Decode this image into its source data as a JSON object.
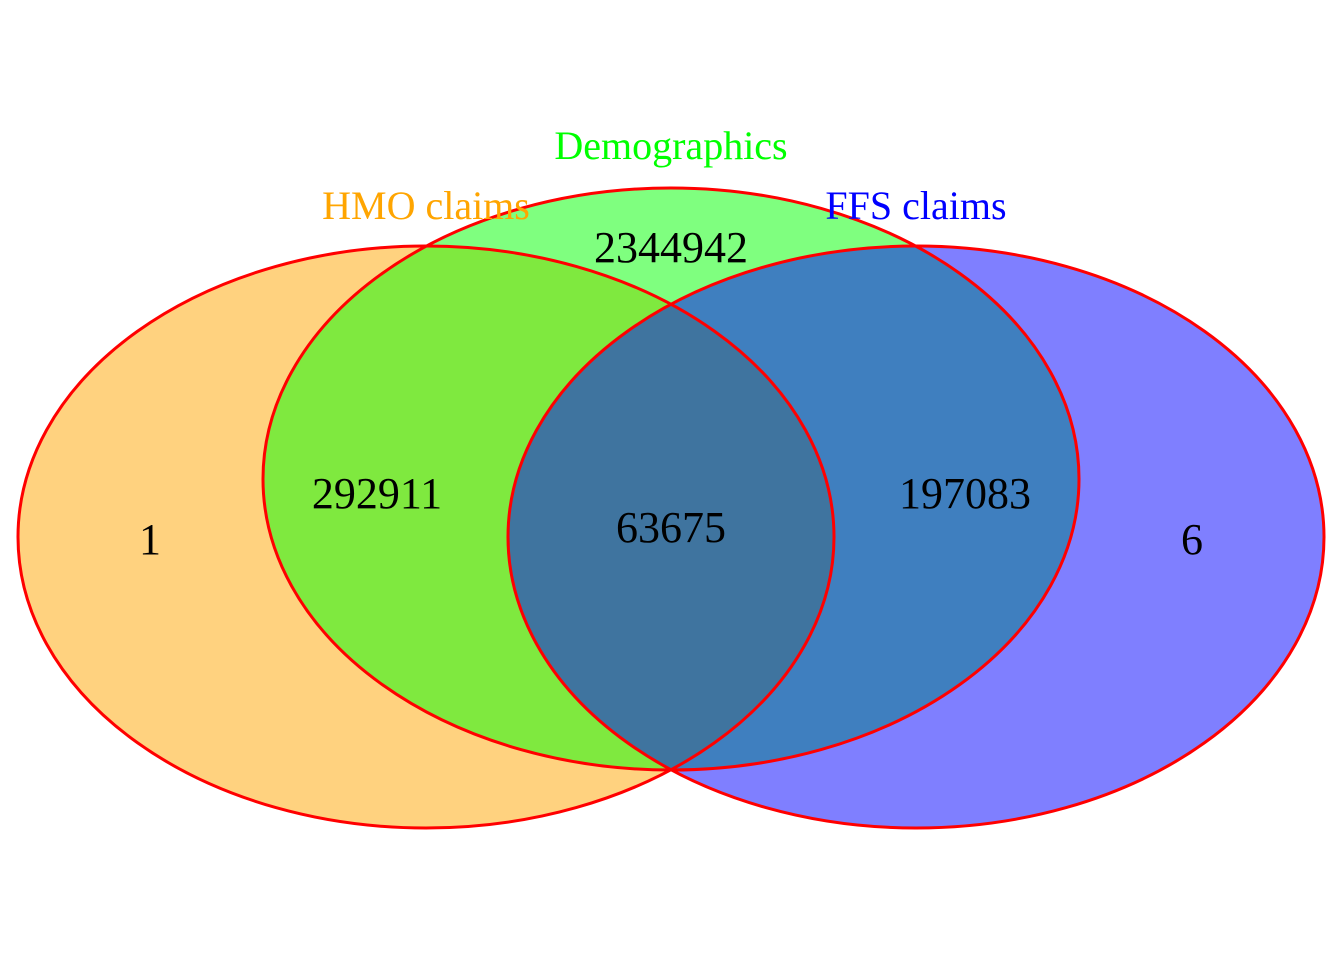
{
  "sets": [
    {
      "key": "hmo",
      "name": "HMO claims",
      "fill": "#FFA500",
      "label_color": "#FFA500"
    },
    {
      "key": "demo",
      "name": "Demographics",
      "fill": "#00FF00",
      "label_color": "#00FF00"
    },
    {
      "key": "ffs",
      "name": "FFS claims",
      "fill": "#0000FF",
      "label_color": "#0000FF"
    }
  ],
  "outline_color": "#FF0000",
  "regions": {
    "hmo_only": "1",
    "hmo_demo": "292911",
    "demo_only": "2344942",
    "all_three": "63675",
    "demo_ffs": "197083",
    "ffs_only": "6"
  }
}
